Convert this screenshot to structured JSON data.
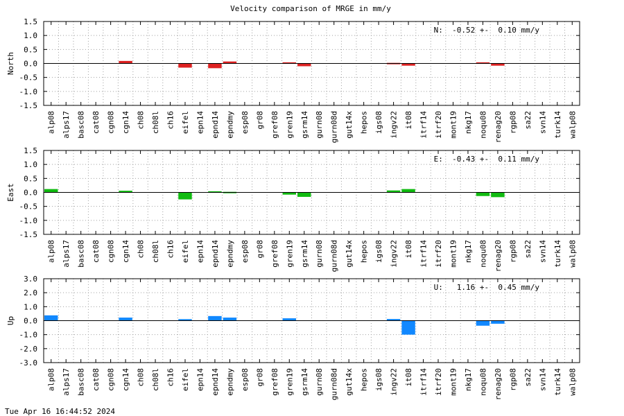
{
  "chart_data": {
    "type": "bar",
    "title": "Velocity comparison of MRGE in mm/y",
    "categories": [
      "alp08",
      "alps17",
      "basc08",
      "cat08",
      "cgn08",
      "cgn14",
      "ch08",
      "ch08l",
      "ch16",
      "eifel",
      "epn14",
      "epnd14",
      "epndmy",
      "esp08",
      "gr08",
      "gref08",
      "gren19",
      "gsrm14",
      "gurn08",
      "gurn08d",
      "gut14x",
      "hepos",
      "igs08",
      "ingv22",
      "it08",
      "itrf14",
      "itrf20",
      "mont19",
      "nkg17",
      "noqu08",
      "renag20",
      "rgp08",
      "sa22",
      "svn14",
      "turk14",
      "walp08"
    ],
    "panels": [
      {
        "name": "North",
        "ylabel": "North",
        "color": "#dd2222",
        "ylim": [
          -1.5,
          1.5
        ],
        "yticks": [
          "-1.5",
          "-1.0",
          "-0.5",
          "0.0",
          "0.5",
          "1.0",
          "1.5"
        ],
        "ytick_values": [
          -1.5,
          -1.0,
          -0.5,
          0.0,
          0.5,
          1.0,
          1.5
        ],
        "annotation": "N:  -0.52 +-  0.10 mm/y",
        "values": [
          null,
          null,
          null,
          null,
          null,
          0.09,
          null,
          null,
          null,
          -0.15,
          null,
          -0.17,
          0.07,
          null,
          null,
          null,
          0.04,
          -0.1,
          null,
          null,
          null,
          null,
          null,
          0.02,
          -0.08,
          null,
          null,
          null,
          null,
          0.04,
          -0.08,
          null,
          null,
          null,
          null,
          null
        ]
      },
      {
        "name": "East",
        "ylabel": "East",
        "color": "#11bb11",
        "ylim": [
          -1.5,
          1.5
        ],
        "yticks": [
          "-1.5",
          "-1.0",
          "-0.5",
          "0.0",
          "0.5",
          "1.0",
          "1.5"
        ],
        "ytick_values": [
          -1.5,
          -1.0,
          -0.5,
          0.0,
          0.5,
          1.0,
          1.5
        ],
        "annotation": "E:  -0.43 +-  0.11 mm/y",
        "values": [
          0.12,
          null,
          null,
          null,
          null,
          0.06,
          null,
          null,
          null,
          -0.25,
          null,
          0.04,
          0.02,
          null,
          null,
          null,
          -0.08,
          -0.16,
          null,
          null,
          null,
          null,
          null,
          0.07,
          0.12,
          null,
          null,
          null,
          null,
          -0.13,
          -0.17,
          null,
          null,
          null,
          null,
          null
        ]
      },
      {
        "name": "Up",
        "ylabel": "Up",
        "color": "#1188ff",
        "ylim": [
          -3.0,
          3.0
        ],
        "yticks": [
          "-3.0",
          "-2.0",
          "-1.0",
          "0.0",
          "1.0",
          "2.0",
          "3.0"
        ],
        "ytick_values": [
          -3.0,
          -2.0,
          -1.0,
          0.0,
          1.0,
          2.0,
          3.0
        ],
        "annotation": "U:   1.16 +-  0.45 mm/y",
        "values": [
          0.38,
          null,
          null,
          null,
          null,
          0.22,
          null,
          null,
          null,
          0.11,
          null,
          0.33,
          0.22,
          null,
          null,
          null,
          0.17,
          null,
          null,
          null,
          null,
          null,
          null,
          0.12,
          -1.0,
          null,
          null,
          null,
          null,
          -0.36,
          -0.22,
          null,
          null,
          null,
          null,
          null
        ]
      }
    ],
    "grid": true
  },
  "footer": {
    "timestamp": "Tue Apr 16 16:44:52 2024"
  }
}
